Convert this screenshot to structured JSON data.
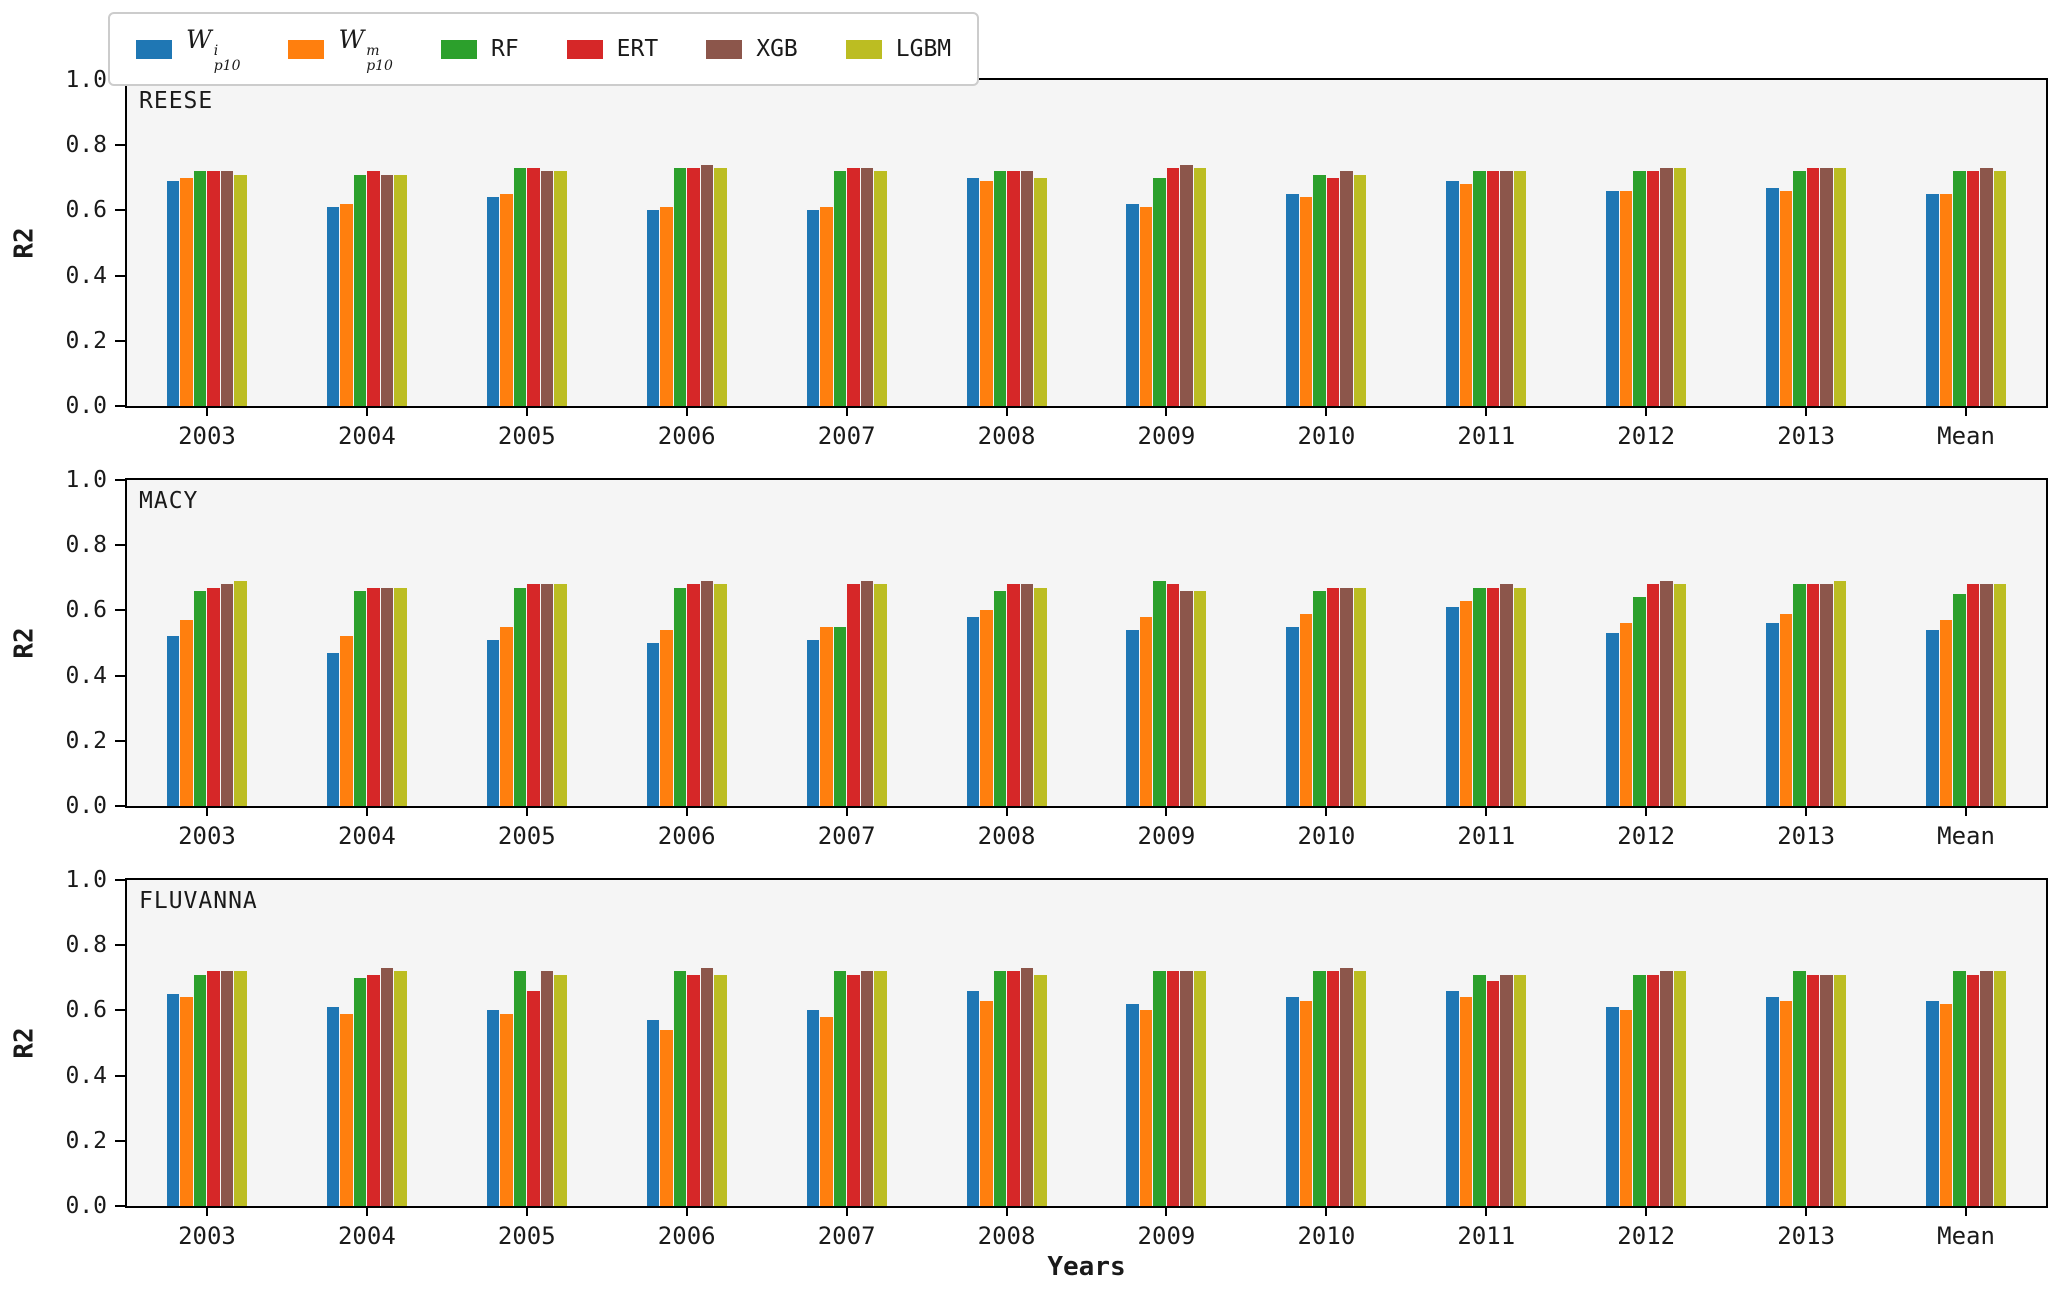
{
  "legend": {
    "items": [
      {
        "name": "W_p10_i",
        "base": "W",
        "sup": "i",
        "sub": "p10",
        "color": "#1f77b4"
      },
      {
        "name": "W_p10_m",
        "base": "W",
        "sup": "m",
        "sub": "p10",
        "color": "#ff7f0e"
      },
      {
        "name": "RF",
        "label": "RF",
        "color": "#2ca02c"
      },
      {
        "name": "ERT",
        "label": "ERT",
        "color": "#d62728"
      },
      {
        "name": "XGB",
        "label": "XGB",
        "color": "#8c564b"
      },
      {
        "name": "LGBM",
        "label": "LGBM",
        "color": "#bcbd22"
      }
    ]
  },
  "chart_data": {
    "type": "bar",
    "categories": [
      "2003",
      "2004",
      "2005",
      "2006",
      "2007",
      "2008",
      "2009",
      "2010",
      "2011",
      "2012",
      "2013",
      "Mean"
    ],
    "xlabel": "Years",
    "ylabel": "R2",
    "ylim": [
      0,
      1
    ],
    "yticklabels": [
      "0.0",
      "0.2",
      "0.4",
      "0.6",
      "0.8",
      "1.0"
    ],
    "legend_position": "top-left-outside",
    "grid": false,
    "series_names": [
      "W_p10_i",
      "W_p10_m",
      "RF",
      "ERT",
      "XGB",
      "LGBM"
    ],
    "colors": [
      "#1f77b4",
      "#ff7f0e",
      "#2ca02c",
      "#d62728",
      "#8c564b",
      "#bcbd22"
    ],
    "panels": [
      {
        "title": "REESE",
        "series": [
          {
            "name": "W_p10_i",
            "values": [
              0.69,
              0.61,
              0.64,
              0.6,
              0.6,
              0.7,
              0.62,
              0.65,
              0.69,
              0.66,
              0.67,
              0.65
            ]
          },
          {
            "name": "W_p10_m",
            "values": [
              0.7,
              0.62,
              0.65,
              0.61,
              0.61,
              0.69,
              0.61,
              0.64,
              0.68,
              0.66,
              0.66,
              0.65
            ]
          },
          {
            "name": "RF",
            "values": [
              0.72,
              0.71,
              0.73,
              0.73,
              0.72,
              0.72,
              0.7,
              0.71,
              0.72,
              0.72,
              0.72,
              0.72
            ]
          },
          {
            "name": "ERT",
            "values": [
              0.72,
              0.72,
              0.73,
              0.73,
              0.73,
              0.72,
              0.73,
              0.7,
              0.72,
              0.72,
              0.73,
              0.72
            ]
          },
          {
            "name": "XGB",
            "values": [
              0.72,
              0.71,
              0.72,
              0.74,
              0.73,
              0.72,
              0.74,
              0.72,
              0.72,
              0.73,
              0.73,
              0.73
            ]
          },
          {
            "name": "LGBM",
            "values": [
              0.71,
              0.71,
              0.72,
              0.73,
              0.72,
              0.7,
              0.73,
              0.71,
              0.72,
              0.73,
              0.73,
              0.72
            ]
          }
        ]
      },
      {
        "title": "MACY",
        "series": [
          {
            "name": "W_p10_i",
            "values": [
              0.52,
              0.47,
              0.51,
              0.5,
              0.51,
              0.58,
              0.54,
              0.55,
              0.61,
              0.53,
              0.56,
              0.54
            ]
          },
          {
            "name": "W_p10_m",
            "values": [
              0.57,
              0.52,
              0.55,
              0.54,
              0.55,
              0.6,
              0.58,
              0.59,
              0.63,
              0.56,
              0.59,
              0.57
            ]
          },
          {
            "name": "RF",
            "values": [
              0.66,
              0.66,
              0.67,
              0.67,
              0.55,
              0.66,
              0.69,
              0.66,
              0.67,
              0.64,
              0.68,
              0.65
            ]
          },
          {
            "name": "ERT",
            "values": [
              0.67,
              0.67,
              0.68,
              0.68,
              0.68,
              0.68,
              0.68,
              0.67,
              0.67,
              0.68,
              0.68,
              0.68
            ]
          },
          {
            "name": "XGB",
            "values": [
              0.68,
              0.67,
              0.68,
              0.69,
              0.69,
              0.68,
              0.66,
              0.67,
              0.68,
              0.69,
              0.68,
              0.68
            ]
          },
          {
            "name": "LGBM",
            "values": [
              0.69,
              0.67,
              0.68,
              0.68,
              0.68,
              0.67,
              0.66,
              0.67,
              0.67,
              0.68,
              0.69,
              0.68
            ]
          }
        ]
      },
      {
        "title": "FLUVANNA",
        "series": [
          {
            "name": "W_p10_i",
            "values": [
              0.65,
              0.61,
              0.6,
              0.57,
              0.6,
              0.66,
              0.62,
              0.64,
              0.66,
              0.61,
              0.64,
              0.63
            ]
          },
          {
            "name": "W_p10_m",
            "values": [
              0.64,
              0.59,
              0.59,
              0.54,
              0.58,
              0.63,
              0.6,
              0.63,
              0.64,
              0.6,
              0.63,
              0.62
            ]
          },
          {
            "name": "RF",
            "values": [
              0.71,
              0.7,
              0.72,
              0.72,
              0.72,
              0.72,
              0.72,
              0.72,
              0.71,
              0.71,
              0.72,
              0.72
            ]
          },
          {
            "name": "ERT",
            "values": [
              0.72,
              0.71,
              0.66,
              0.71,
              0.71,
              0.72,
              0.72,
              0.72,
              0.69,
              0.71,
              0.71,
              0.71
            ]
          },
          {
            "name": "XGB",
            "values": [
              0.72,
              0.73,
              0.72,
              0.73,
              0.72,
              0.73,
              0.72,
              0.73,
              0.71,
              0.72,
              0.71,
              0.72
            ]
          },
          {
            "name": "LGBM",
            "values": [
              0.72,
              0.72,
              0.71,
              0.71,
              0.72,
              0.71,
              0.72,
              0.72,
              0.71,
              0.72,
              0.71,
              0.72
            ]
          }
        ]
      }
    ]
  }
}
